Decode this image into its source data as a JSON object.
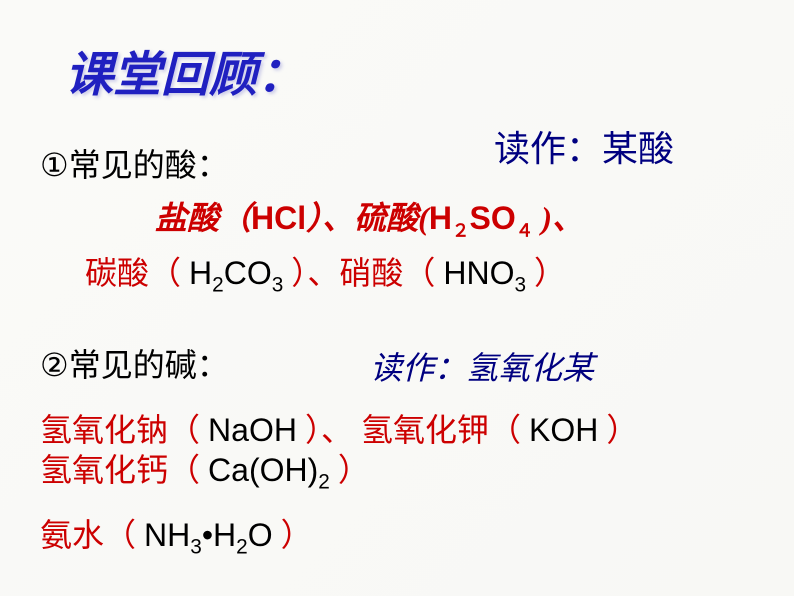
{
  "title": "课堂回顾：",
  "readAs1": "读作：某酸",
  "item1_prefix": "①",
  "item1_text": "常见的酸：",
  "acid_yansuan": "盐酸（",
  "acid_hcl": "HCl",
  "acid_sep1": "）、",
  "acid_liusuan": "硫酸(",
  "acid_h": "H",
  "acid_2": "２",
  "acid_so": "SO",
  "acid_4": "４",
  "acid_sep2": " )、",
  "acid_tansuan": "碳酸",
  "acid_paren_l": "（ ",
  "acid_h2co3_h": "H",
  "acid_h2co3_2": "2",
  "acid_h2co3_co": "CO",
  "acid_h2co3_3": "3",
  "acid_paren_r": " ）",
  "acid_sep3": "、",
  "acid_xiaosuan": "硝酸",
  "acid_hno3_h": "HNO",
  "acid_hno3_3": "3",
  "item2_prefix": "②",
  "item2_text": "常见的碱：",
  "readAs2": "读作：氢氧化某",
  "base_naoh_label": "氢氧化钠",
  "base_naoh": "NaOH",
  "base_sep1": "、",
  "base_koh_label": "氢氧化钾",
  "base_koh": "KOH",
  "base_caoh_label": "氢氧化钙",
  "base_caoh_ca": "Ca(OH)",
  "base_caoh_2": "2",
  "base_nh3_label": "氨水",
  "base_nh3_nh": "NH",
  "base_nh3_3": "3",
  "base_nh3_dot": "•H",
  "base_nh3_2": "2",
  "base_nh3_o": "O",
  "colors": {
    "title": "#2020c0",
    "navy": "#000080",
    "red": "#cc0000",
    "black": "#000000",
    "background": "#fafaf8"
  },
  "fontsizes": {
    "title": 48,
    "body": 32,
    "readAs": 36
  }
}
